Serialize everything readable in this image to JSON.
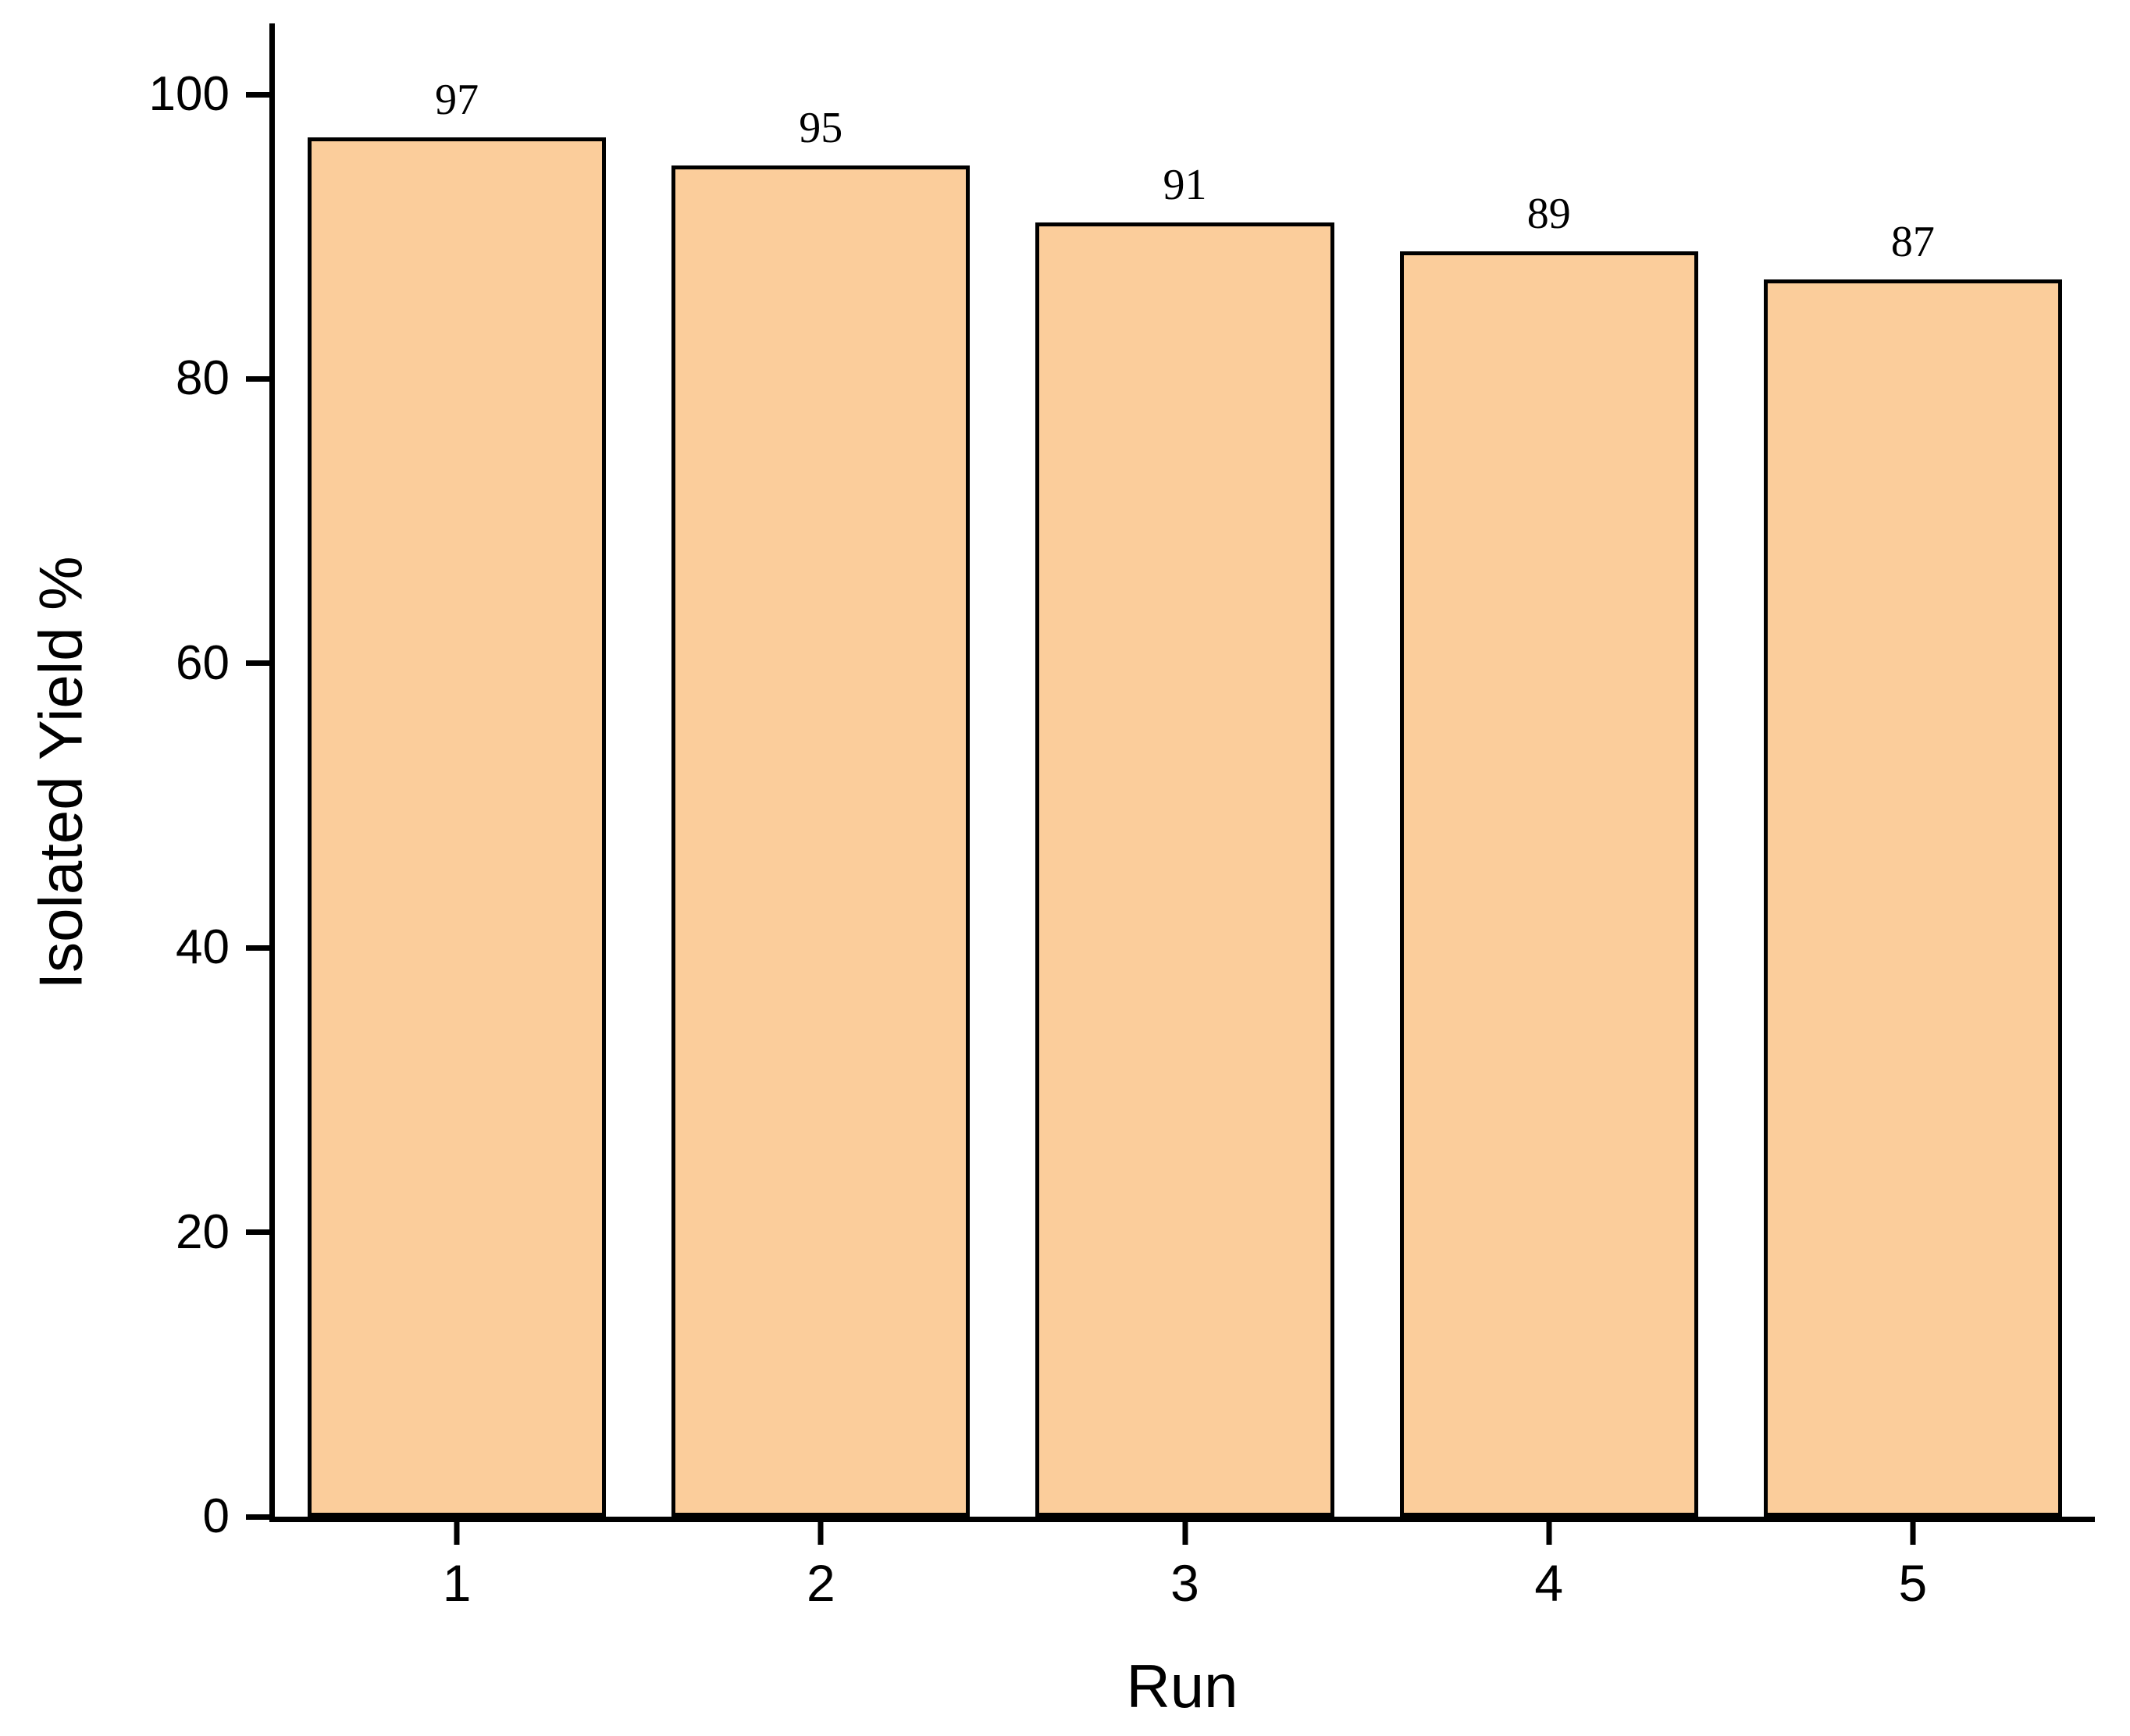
{
  "chart_data": {
    "type": "bar",
    "title": "",
    "xlabel": "Run",
    "ylabel": "Isolated Yield %",
    "categories": [
      "1",
      "2",
      "3",
      "4",
      "5"
    ],
    "values": [
      97,
      95,
      91,
      89,
      87
    ],
    "data_labels": [
      97,
      95,
      91,
      89,
      87
    ],
    "ylim": [
      0,
      105
    ],
    "yticks": [
      0,
      20,
      40,
      60,
      80,
      100
    ],
    "bar_fill": "#FBCD9B",
    "bar_border": "#000000",
    "background": "#FFFFFF",
    "grid": "off",
    "legend": "none"
  }
}
